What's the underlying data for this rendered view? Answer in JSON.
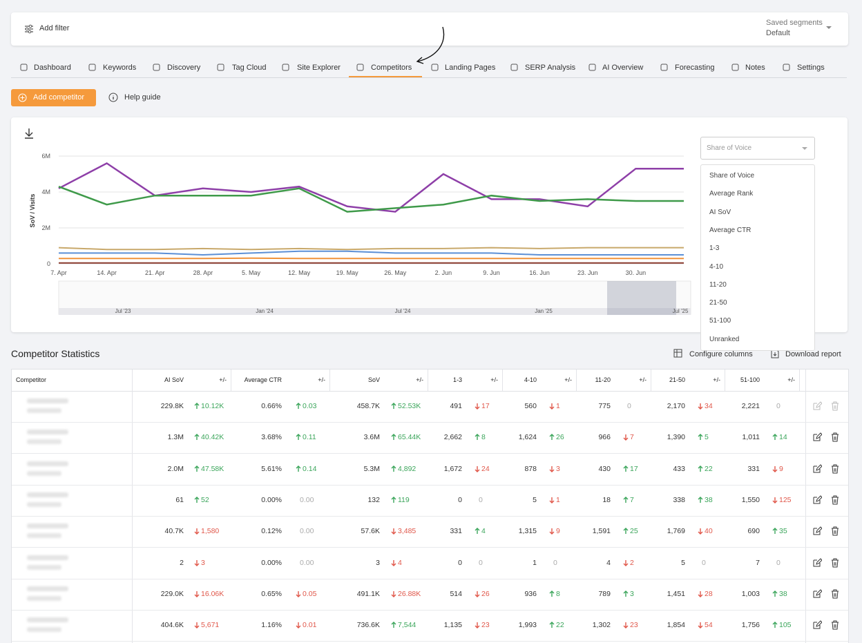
{
  "filter_bar": {
    "add_filter": "Add filter",
    "saved_segments": "Saved segments",
    "segment": "Default"
  },
  "tabs": {
    "items": [
      "Dashboard",
      "Keywords",
      "Discovery",
      "Tag Cloud",
      "Site Explorer",
      "Competitors",
      "Landing Pages",
      "SERP Analysis",
      "AI Overview",
      "Forecasting",
      "Notes",
      "Settings"
    ],
    "active": 5
  },
  "actions": {
    "add_competitor": "Add competitor",
    "help_guide": "Help guide"
  },
  "chart_data": {
    "type": "line",
    "y_label": "SoV / Visits",
    "categories": [
      "7. Apr",
      "14. Apr",
      "21. Apr",
      "28. Apr",
      "5. May",
      "12. May",
      "19. May",
      "26. May",
      "2. Jun",
      "9. Jun",
      "16. Jun",
      "23. Jun",
      "30. Jun",
      null
    ],
    "ylim": [
      0,
      6000000
    ],
    "yticks": [
      0,
      {
        "value": 2000000,
        "label": "2M"
      },
      {
        "value": 4000000,
        "label": "4M"
      },
      {
        "value": 6000000,
        "label": "6M"
      }
    ],
    "grid": true,
    "series": [
      {
        "color": "#8e3fa8",
        "values": [
          4200000,
          5600000,
          3800000,
          4200000,
          4000000,
          4300000,
          3200000,
          2900000,
          5000000,
          3600000,
          3600000,
          3200000,
          5300000,
          5300000
        ]
      },
      {
        "color": "#3f9a4a",
        "values": [
          4300000,
          3300000,
          3800000,
          3800000,
          3800000,
          4200000,
          2900000,
          3100000,
          3300000,
          3800000,
          3500000,
          3600000,
          3500000,
          3500000
        ]
      },
      {
        "color": "#c8a86a",
        "values": [
          900000,
          800000,
          800000,
          850000,
          800000,
          850000,
          800000,
          850000,
          850000,
          900000,
          850000,
          900000,
          900000,
          900000
        ]
      },
      {
        "color": "#5b8fd6",
        "values": [
          600000,
          600000,
          600000,
          500000,
          600000,
          700000,
          700000,
          600000,
          600000,
          600000,
          500000,
          500000,
          500000,
          500000
        ]
      },
      {
        "color": "#f0923a",
        "values": [
          300000,
          300000,
          300000,
          300000,
          320000,
          300000,
          300000,
          300000,
          300000,
          300000,
          300000,
          300000,
          300000,
          300000
        ]
      },
      {
        "color": "#8b3a2e",
        "values": [
          50000,
          50000,
          50000,
          50000,
          50000,
          50000,
          50000,
          50000,
          50000,
          50000,
          50000,
          50000,
          50000,
          50000
        ]
      }
    ],
    "navigator_labels": [
      "Jul '23",
      "Jan '24",
      "Jul '24",
      "Jan '25",
      "Jul '25"
    ]
  },
  "metric_select": {
    "selected": "Share of Voice",
    "options": [
      "Share of Voice",
      "Average Rank",
      "AI SoV",
      "Average CTR",
      "1-3",
      "4-10",
      "11-20",
      "21-50",
      "51-100",
      "Unranked"
    ]
  },
  "statistics": {
    "title": "Competitor Statistics",
    "configure_columns": "Configure columns",
    "download_report": "Download report"
  },
  "table": {
    "competitor_header": "Competitor",
    "columns": [
      {
        "label": "AI SoV",
        "change": "+/-"
      },
      {
        "label": "Average CTR",
        "change": "+/-"
      },
      {
        "label": "SoV",
        "change": "+/-"
      },
      {
        "label": "1-3",
        "change": "+/-"
      },
      {
        "label": "4-10",
        "change": "+/-"
      },
      {
        "label": "11-20",
        "change": "+/-"
      },
      {
        "label": "21-50",
        "change": "+/-"
      },
      {
        "label": "51-100",
        "change": "+/-"
      }
    ],
    "rows": [
      [
        [
          "229.8K",
          "10.12K",
          "up"
        ],
        [
          "0.66%",
          "0.03",
          "up"
        ],
        [
          "458.7K",
          "52.53K",
          "up"
        ],
        [
          "491",
          "17",
          "down"
        ],
        [
          "560",
          "1",
          "down"
        ],
        [
          "775",
          "0",
          "none"
        ],
        [
          "2,170",
          "34",
          "down"
        ],
        [
          "2,221",
          "0",
          "none"
        ]
      ],
      [
        [
          "1.3M",
          "40.42K",
          "up"
        ],
        [
          "3.68%",
          "0.11",
          "up"
        ],
        [
          "3.6M",
          "65.44K",
          "up"
        ],
        [
          "2,662",
          "8",
          "up"
        ],
        [
          "1,624",
          "26",
          "up"
        ],
        [
          "966",
          "7",
          "down"
        ],
        [
          "1,390",
          "5",
          "up"
        ],
        [
          "1,011",
          "14",
          "up"
        ]
      ],
      [
        [
          "2.0M",
          "47.58K",
          "up"
        ],
        [
          "5.61%",
          "0.14",
          "up"
        ],
        [
          "5.3M",
          "4,892",
          "up"
        ],
        [
          "1,672",
          "24",
          "down"
        ],
        [
          "878",
          "3",
          "down"
        ],
        [
          "430",
          "17",
          "up"
        ],
        [
          "433",
          "22",
          "up"
        ],
        [
          "331",
          "9",
          "down"
        ]
      ],
      [
        [
          "61",
          "52",
          "up"
        ],
        [
          "0.00%",
          "0.00",
          "none"
        ],
        [
          "132",
          "119",
          "up"
        ],
        [
          "0",
          "0",
          "none"
        ],
        [
          "5",
          "1",
          "down"
        ],
        [
          "18",
          "7",
          "up"
        ],
        [
          "338",
          "38",
          "up"
        ],
        [
          "1,550",
          "125",
          "down"
        ]
      ],
      [
        [
          "40.7K",
          "1,580",
          "down"
        ],
        [
          "0.12%",
          "0.00",
          "none"
        ],
        [
          "57.6K",
          "3,485",
          "down"
        ],
        [
          "331",
          "4",
          "up"
        ],
        [
          "1,315",
          "9",
          "down"
        ],
        [
          "1,591",
          "25",
          "up"
        ],
        [
          "1,769",
          "40",
          "down"
        ],
        [
          "690",
          "35",
          "up"
        ]
      ],
      [
        [
          "2",
          "3",
          "down"
        ],
        [
          "0.00%",
          "0.00",
          "none"
        ],
        [
          "3",
          "4",
          "down"
        ],
        [
          "0",
          "0",
          "none"
        ],
        [
          "1",
          "0",
          "none"
        ],
        [
          "4",
          "2",
          "down"
        ],
        [
          "5",
          "0",
          "none"
        ],
        [
          "7",
          "0",
          "none"
        ]
      ],
      [
        [
          "229.0K",
          "16.06K",
          "down"
        ],
        [
          "0.65%",
          "0.05",
          "down"
        ],
        [
          "491.1K",
          "26.88K",
          "down"
        ],
        [
          "514",
          "26",
          "down"
        ],
        [
          "936",
          "8",
          "up"
        ],
        [
          "789",
          "3",
          "up"
        ],
        [
          "1,451",
          "28",
          "down"
        ],
        [
          "1,003",
          "38",
          "up"
        ]
      ],
      [
        [
          "404.6K",
          "5,671",
          "down"
        ],
        [
          "1.16%",
          "0.01",
          "down"
        ],
        [
          "736.6K",
          "7,544",
          "up"
        ],
        [
          "1,135",
          "23",
          "down"
        ],
        [
          "1,993",
          "22",
          "up"
        ],
        [
          "1,302",
          "23",
          "down"
        ],
        [
          "1,854",
          "54",
          "down"
        ],
        [
          "1,756",
          "105",
          "up"
        ]
      ]
    ]
  }
}
